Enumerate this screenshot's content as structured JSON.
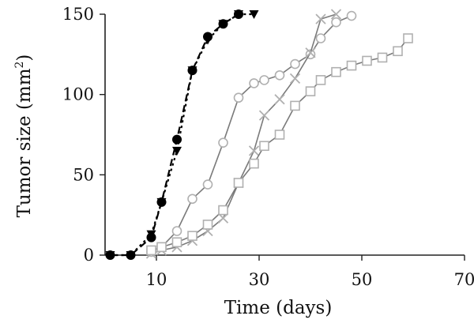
{
  "chart_data": {
    "type": "line",
    "title": "",
    "xlabel": "Time (days)",
    "ylabel_main": "Tumor size (mm",
    "ylabel_sup": "2",
    "ylabel_close": ")",
    "xlim": [
      0,
      70
    ],
    "ylim": [
      0,
      150
    ],
    "xticks": [
      10,
      30,
      50,
      70
    ],
    "yticks": [
      0,
      50,
      100,
      150
    ],
    "xtick_labels": [
      "10",
      "30",
      "50",
      "70"
    ],
    "ytick_labels": [
      "0",
      "50",
      "100",
      "150"
    ],
    "grid": false,
    "series": [
      {
        "marker": "filled-circle",
        "line": "dashed",
        "color": "#000000",
        "x": [
          1,
          5,
          9,
          11,
          14,
          17,
          20,
          23,
          26
        ],
        "y": [
          0,
          0,
          11,
          33,
          72,
          115,
          136,
          144,
          150
        ]
      },
      {
        "marker": "filled-triangle-down",
        "line": "dotted",
        "color": "#000000",
        "x": [
          1,
          5,
          9,
          11,
          14,
          17,
          20,
          23,
          26,
          29
        ],
        "y": [
          0,
          0,
          13,
          33,
          65,
          115,
          134,
          144,
          150,
          150
        ]
      },
      {
        "marker": "open-circle",
        "line": "solid",
        "color": "#7a7a7a",
        "marker_color": "#b0b0b0",
        "x": [
          9,
          11,
          14,
          17,
          20,
          23,
          26,
          29,
          31,
          34,
          37,
          40,
          42,
          45,
          48
        ],
        "y": [
          2,
          5,
          15,
          35,
          44,
          70,
          98,
          107,
          109,
          112,
          119,
          125,
          135,
          145,
          149
        ]
      },
      {
        "marker": "cross",
        "line": "solid",
        "color": "#7a7a7a",
        "marker_color": "#b0b0b0",
        "x": [
          9,
          11,
          14,
          17,
          20,
          23,
          26,
          29,
          31,
          34,
          37,
          40,
          42,
          45
        ],
        "y": [
          1,
          3,
          5,
          9,
          15,
          23,
          45,
          65,
          87,
          97,
          110,
          126,
          147,
          150
        ]
      },
      {
        "marker": "open-square",
        "line": "solid",
        "color": "#7a7a7a",
        "marker_color": "#b0b0b0",
        "x": [
          9,
          11,
          14,
          17,
          20,
          23,
          26,
          29,
          31,
          34,
          37,
          40,
          42,
          45,
          48,
          51,
          54,
          57,
          59
        ],
        "y": [
          3,
          5,
          8,
          12,
          19,
          28,
          45,
          57,
          68,
          75,
          93,
          102,
          109,
          114,
          118,
          121,
          123,
          127,
          135
        ]
      }
    ]
  }
}
